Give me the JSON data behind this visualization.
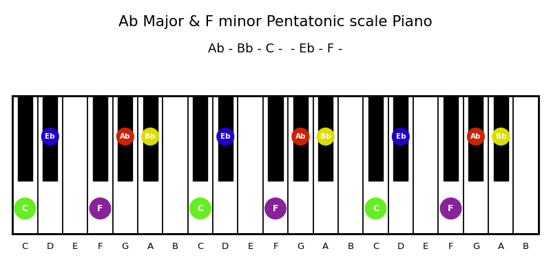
{
  "title": "Ab Major & F minor Pentatonic scale Piano",
  "subtitle": "Ab - Bb - C -  - Eb - F -",
  "white_keys": [
    "C",
    "D",
    "E",
    "F",
    "G",
    "A",
    "B",
    "C",
    "D",
    "E",
    "F",
    "G",
    "A",
    "B",
    "C",
    "D",
    "E",
    "F",
    "G",
    "A",
    "B"
  ],
  "num_white_keys": 21,
  "bg_color": "#ffffff",
  "note_markers_black": [
    {
      "black_idx": 1,
      "label": "Eb",
      "color": "#2200cc"
    },
    {
      "black_idx": 3,
      "label": "Ab",
      "color": "#cc2200"
    },
    {
      "black_idx": 4,
      "label": "Bb",
      "color": "#dddd00"
    },
    {
      "black_idx": 6,
      "label": "Eb",
      "color": "#2200cc"
    },
    {
      "black_idx": 8,
      "label": "Ab",
      "color": "#cc2200"
    },
    {
      "black_idx": 9,
      "label": "Bb",
      "color": "#dddd00"
    },
    {
      "black_idx": 11,
      "label": "Eb",
      "color": "#2200cc"
    },
    {
      "black_idx": 13,
      "label": "Ab",
      "color": "#cc2200"
    },
    {
      "black_idx": 14,
      "label": "Bb",
      "color": "#dddd00"
    }
  ],
  "note_markers_white": [
    {
      "white_idx": 0,
      "label": "C",
      "color": "#66ee22"
    },
    {
      "white_idx": 3,
      "label": "F",
      "color": "#882299"
    },
    {
      "white_idx": 7,
      "label": "C",
      "color": "#66ee22"
    },
    {
      "white_idx": 10,
      "label": "F",
      "color": "#882299"
    },
    {
      "white_idx": 14,
      "label": "C",
      "color": "#66ee22"
    },
    {
      "white_idx": 17,
      "label": "F",
      "color": "#882299"
    }
  ]
}
